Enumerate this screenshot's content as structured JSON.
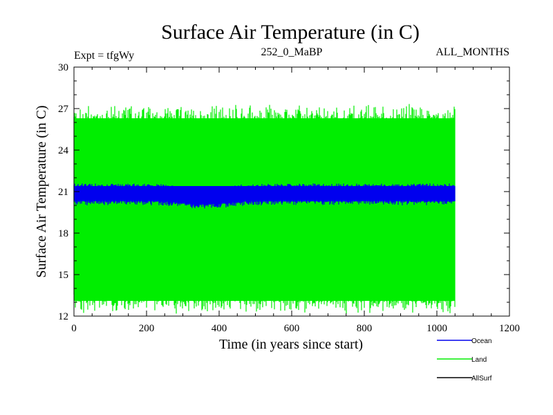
{
  "chart_data": {
    "type": "line",
    "title": "Surface Air Temperature (in C)",
    "subtitle_left": "Expt = tfgWy",
    "subtitle_center": "252_0_MaBP",
    "subtitle_right": "ALL_MONTHS",
    "xlabel": "Time (in years since start)",
    "ylabel": "Surface Air Temperature (in C)",
    "xlim": [
      0,
      1200
    ],
    "ylim": [
      12,
      30
    ],
    "xticks": [
      0,
      200,
      400,
      600,
      800,
      1000,
      1200
    ],
    "yticks": [
      12,
      15,
      18,
      21,
      24,
      27,
      30
    ],
    "x_extent": [
      0,
      1050
    ],
    "series": [
      {
        "name": "Land",
        "color": "#00ee00",
        "band_low": 13.1,
        "band_high": 26.3,
        "peak_low": 12.1,
        "peak_high": 27.4
      },
      {
        "name": "Ocean",
        "color": "#0000ee",
        "band_low": 20.3,
        "band_high": 21.4,
        "peak_low": 20.0,
        "peak_high": 21.6
      },
      {
        "name": "AllSurf",
        "color": "#000000"
      }
    ],
    "legend": [
      {
        "label": "Ocean",
        "color": "#0000ee"
      },
      {
        "label": "Land",
        "color": "#00ee00"
      },
      {
        "label": "AllSurf",
        "color": "#000000"
      }
    ]
  }
}
